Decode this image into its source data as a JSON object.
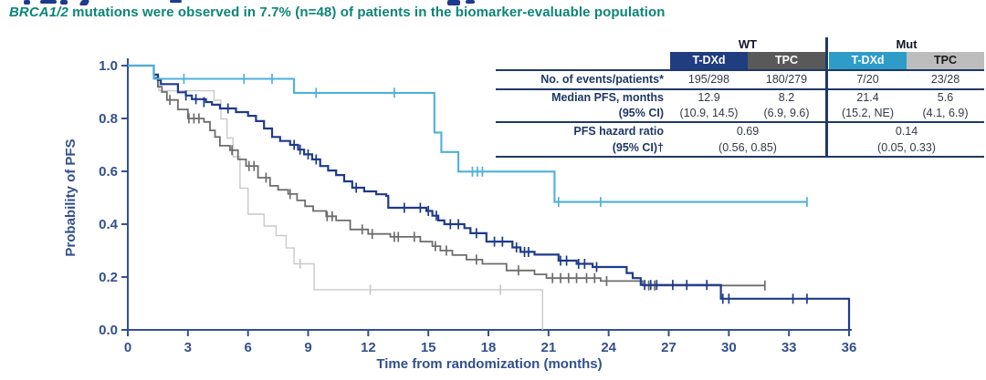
{
  "subtitle": {
    "italic": "BRCA1/2",
    "rest": " mutations were observed in 7.7% (n=48) of patients in the biomarker-evaluable population"
  },
  "table": {
    "group_headers": [
      "WT",
      "Mut"
    ],
    "columns": [
      {
        "label": "T-DXd",
        "bg": "#1f3d7f",
        "fg": "#ffffff"
      },
      {
        "label": "TPC",
        "bg": "#595959",
        "fg": "#ffffff"
      },
      {
        "label": "T-DXd",
        "bg": "#2e9cc9",
        "fg": "#ffffff"
      },
      {
        "label": "TPC",
        "bg": "#bdbdbd",
        "fg": "#1a1a1a"
      }
    ],
    "rows": {
      "events": {
        "label": "No. of events/patients*",
        "values": [
          "195/298",
          "180/279",
          "7/20",
          "23/28"
        ]
      },
      "median": {
        "label": "Median PFS, months",
        "label2": "(95% CI)",
        "values": [
          "12.9",
          "8.2",
          "21.4",
          "5.6"
        ],
        "ci": [
          "(10.9, 14.5)",
          "(6.9, 9.6)",
          "(15.2, NE)",
          "(4.1, 6.9)"
        ]
      },
      "hazard": {
        "label": "PFS hazard ratio",
        "label2": "(95% CI)†",
        "values": [
          "0.69",
          "0.14"
        ],
        "ci": [
          "(0.56, 0.85)",
          "(0.05, 0.33)"
        ]
      }
    }
  },
  "chart_data": {
    "type": "line",
    "subtype": "kaplan-meier",
    "xlabel": "Time from randomization (months)",
    "ylabel": "Probability of PFS",
    "xlim": [
      0,
      36
    ],
    "ylim": [
      0.0,
      1.0
    ],
    "x_ticks": [
      0,
      3,
      6,
      9,
      12,
      15,
      18,
      21,
      24,
      27,
      30,
      33,
      36
    ],
    "y_ticks": [
      0.0,
      0.2,
      0.4,
      0.6,
      0.8,
      1.0
    ],
    "grid": false,
    "legend": "table-overlay",
    "axis_color": "#33508e",
    "series": [
      {
        "id": "tpc-mut",
        "name": "TPC (Mut)",
        "color": "#c9c9c9",
        "width": 1.4,
        "median_months": 5.6,
        "steps": [
          [
            1.3,
            0.964
          ],
          [
            1.55,
            0.905
          ],
          [
            4.3,
            0.869
          ],
          [
            4.65,
            0.798
          ],
          [
            4.95,
            0.726
          ],
          [
            5.25,
            0.655
          ],
          [
            5.6,
            0.536
          ],
          [
            6.0,
            0.438
          ],
          [
            6.8,
            0.393
          ],
          [
            7.4,
            0.357
          ],
          [
            7.9,
            0.31
          ],
          [
            8.3,
            0.25
          ],
          [
            9.3,
            0.152
          ]
        ],
        "end": 20.7,
        "end_drop": true,
        "censors": [
          [
            8.6,
            0.25
          ],
          [
            12.1,
            0.152
          ],
          [
            18.6,
            0.152
          ]
        ]
      },
      {
        "id": "tpc-wt",
        "name": "TPC (WT)",
        "color": "#6d6d6d",
        "width": 1.8,
        "median_months": 8.2,
        "steps": [
          [
            1.3,
            0.955
          ],
          [
            1.5,
            0.92
          ],
          [
            1.7,
            0.9
          ],
          [
            1.95,
            0.87
          ],
          [
            2.5,
            0.834
          ],
          [
            3.0,
            0.8
          ],
          [
            3.8,
            0.787
          ],
          [
            4.1,
            0.755
          ],
          [
            4.35,
            0.73
          ],
          [
            4.6,
            0.697
          ],
          [
            5.1,
            0.68
          ],
          [
            5.5,
            0.645
          ],
          [
            5.9,
            0.62
          ],
          [
            6.5,
            0.576
          ],
          [
            7.1,
            0.545
          ],
          [
            7.5,
            0.53
          ],
          [
            8.0,
            0.514
          ],
          [
            8.45,
            0.49
          ],
          [
            8.85,
            0.468
          ],
          [
            9.25,
            0.45
          ],
          [
            9.9,
            0.43
          ],
          [
            10.4,
            0.414
          ],
          [
            11.1,
            0.38
          ],
          [
            12.0,
            0.363
          ],
          [
            13.1,
            0.352
          ],
          [
            14.6,
            0.334
          ],
          [
            15.2,
            0.317
          ],
          [
            15.6,
            0.3
          ],
          [
            16.2,
            0.283
          ],
          [
            16.9,
            0.266
          ],
          [
            17.7,
            0.25
          ],
          [
            18.9,
            0.225
          ],
          [
            20.3,
            0.21
          ],
          [
            20.9,
            0.196
          ],
          [
            23.6,
            0.185
          ],
          [
            25.7,
            0.168
          ]
        ],
        "end": 31.8,
        "end_drop": false,
        "censors": [
          [
            2.1,
            0.87
          ],
          [
            3.05,
            0.8
          ],
          [
            3.3,
            0.8
          ],
          [
            3.55,
            0.8
          ],
          [
            5.2,
            0.68
          ],
          [
            6.05,
            0.62
          ],
          [
            6.3,
            0.62
          ],
          [
            6.9,
            0.576
          ],
          [
            8.1,
            0.514
          ],
          [
            9.95,
            0.43
          ],
          [
            10.2,
            0.43
          ],
          [
            11.7,
            0.38
          ],
          [
            12.2,
            0.363
          ],
          [
            13.3,
            0.352
          ],
          [
            13.5,
            0.352
          ],
          [
            14.3,
            0.352
          ],
          [
            15.35,
            0.317
          ],
          [
            15.9,
            0.3
          ],
          [
            17.4,
            0.266
          ],
          [
            19.5,
            0.225
          ],
          [
            21.2,
            0.196
          ],
          [
            21.6,
            0.196
          ],
          [
            22.0,
            0.196
          ],
          [
            22.4,
            0.196
          ],
          [
            22.9,
            0.196
          ],
          [
            23.3,
            0.196
          ],
          [
            23.9,
            0.185
          ],
          [
            26.0,
            0.168
          ],
          [
            26.3,
            0.168
          ],
          [
            31.8,
            0.168
          ]
        ]
      },
      {
        "id": "tdxd-wt",
        "name": "T-DXd (WT)",
        "color": "#1e3a8c",
        "width": 2.2,
        "median_months": 12.9,
        "steps": [
          [
            1.3,
            0.966
          ],
          [
            1.5,
            0.945
          ],
          [
            1.65,
            0.93
          ],
          [
            2.5,
            0.899
          ],
          [
            2.9,
            0.887
          ],
          [
            3.2,
            0.873
          ],
          [
            3.9,
            0.862
          ],
          [
            4.2,
            0.852
          ],
          [
            4.6,
            0.838
          ],
          [
            5.4,
            0.824
          ],
          [
            6.0,
            0.81
          ],
          [
            6.4,
            0.79
          ],
          [
            6.8,
            0.762
          ],
          [
            7.2,
            0.73
          ],
          [
            7.6,
            0.715
          ],
          [
            8.1,
            0.7
          ],
          [
            8.5,
            0.682
          ],
          [
            8.8,
            0.664
          ],
          [
            9.2,
            0.645
          ],
          [
            9.6,
            0.62
          ],
          [
            10.0,
            0.603
          ],
          [
            10.4,
            0.586
          ],
          [
            10.8,
            0.562
          ],
          [
            11.2,
            0.538
          ],
          [
            11.8,
            0.524
          ],
          [
            12.4,
            0.513
          ],
          [
            12.9,
            0.507
          ],
          [
            13.0,
            0.462
          ],
          [
            14.9,
            0.45
          ],
          [
            15.2,
            0.432
          ],
          [
            15.5,
            0.414
          ],
          [
            15.8,
            0.4
          ],
          [
            16.8,
            0.385
          ],
          [
            17.1,
            0.366
          ],
          [
            17.9,
            0.334
          ],
          [
            19.2,
            0.312
          ],
          [
            19.6,
            0.295
          ],
          [
            20.3,
            0.285
          ],
          [
            21.5,
            0.262
          ],
          [
            22.4,
            0.25
          ],
          [
            23.2,
            0.238
          ],
          [
            24.9,
            0.215
          ],
          [
            25.2,
            0.196
          ],
          [
            25.6,
            0.17
          ],
          [
            29.6,
            0.118
          ]
        ],
        "end": 36,
        "end_drop": true,
        "censors": [
          [
            2.9,
            0.887
          ],
          [
            3.4,
            0.873
          ],
          [
            3.8,
            0.862
          ],
          [
            5.0,
            0.838
          ],
          [
            8.3,
            0.7
          ],
          [
            8.6,
            0.682
          ],
          [
            9.0,
            0.664
          ],
          [
            9.4,
            0.645
          ],
          [
            11.4,
            0.538
          ],
          [
            13.8,
            0.462
          ],
          [
            14.6,
            0.462
          ],
          [
            15.0,
            0.45
          ],
          [
            15.4,
            0.432
          ],
          [
            16.1,
            0.4
          ],
          [
            16.5,
            0.4
          ],
          [
            17.4,
            0.366
          ],
          [
            18.3,
            0.334
          ],
          [
            18.7,
            0.334
          ],
          [
            19.4,
            0.312
          ],
          [
            19.8,
            0.295
          ],
          [
            20.0,
            0.295
          ],
          [
            21.6,
            0.262
          ],
          [
            21.9,
            0.262
          ],
          [
            22.5,
            0.25
          ],
          [
            22.8,
            0.25
          ],
          [
            23.4,
            0.238
          ],
          [
            25.8,
            0.17
          ],
          [
            26.1,
            0.17
          ],
          [
            26.4,
            0.17
          ],
          [
            27.2,
            0.17
          ],
          [
            27.9,
            0.17
          ],
          [
            28.9,
            0.17
          ],
          [
            29.7,
            0.118
          ],
          [
            30.0,
            0.118
          ],
          [
            33.2,
            0.118
          ],
          [
            33.9,
            0.118
          ]
        ]
      },
      {
        "id": "tdxd-mut",
        "name": "T-DXd (Mut)",
        "color": "#4fb0d8",
        "width": 2.1,
        "median_months": 21.4,
        "steps": [
          [
            1.3,
            0.95
          ],
          [
            8.3,
            0.897
          ],
          [
            15.3,
            0.747
          ],
          [
            15.65,
            0.673
          ],
          [
            16.5,
            0.599
          ],
          [
            21.3,
            0.484
          ]
        ],
        "end": 33.9,
        "end_drop": false,
        "censors": [
          [
            2.8,
            0.95
          ],
          [
            5.8,
            0.95
          ],
          [
            7.2,
            0.95
          ],
          [
            9.4,
            0.897
          ],
          [
            13.3,
            0.897
          ],
          [
            17.2,
            0.599
          ],
          [
            17.45,
            0.599
          ],
          [
            17.7,
            0.599
          ],
          [
            21.5,
            0.484
          ],
          [
            23.6,
            0.484
          ],
          [
            33.9,
            0.484
          ]
        ]
      }
    ]
  }
}
